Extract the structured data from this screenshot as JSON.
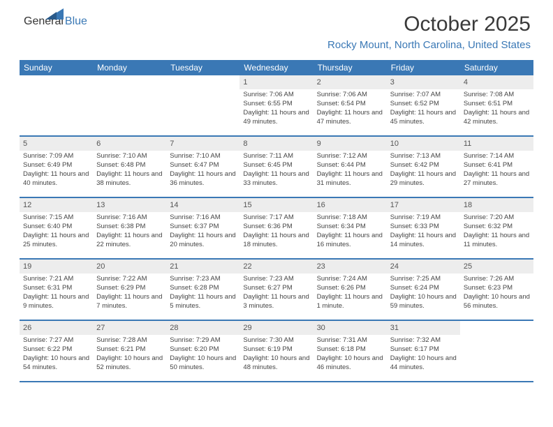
{
  "logo": {
    "part1": "General",
    "part2": "Blue"
  },
  "title": "October 2025",
  "location": "Rocky Mount, North Carolina, United States",
  "colors": {
    "accent": "#3a78b5",
    "header_text": "#ffffff",
    "daynum_bg": "#ededed",
    "logo_gray": "#6f6f6f",
    "body_text": "#444444"
  },
  "days_of_week": [
    "Sunday",
    "Monday",
    "Tuesday",
    "Wednesday",
    "Thursday",
    "Friday",
    "Saturday"
  ],
  "layout": {
    "first_weekday_index": 3,
    "num_days": 31
  },
  "days": {
    "1": {
      "sunrise": "7:06 AM",
      "sunset": "6:55 PM",
      "daylight": "11 hours and 49 minutes."
    },
    "2": {
      "sunrise": "7:06 AM",
      "sunset": "6:54 PM",
      "daylight": "11 hours and 47 minutes."
    },
    "3": {
      "sunrise": "7:07 AM",
      "sunset": "6:52 PM",
      "daylight": "11 hours and 45 minutes."
    },
    "4": {
      "sunrise": "7:08 AM",
      "sunset": "6:51 PM",
      "daylight": "11 hours and 42 minutes."
    },
    "5": {
      "sunrise": "7:09 AM",
      "sunset": "6:49 PM",
      "daylight": "11 hours and 40 minutes."
    },
    "6": {
      "sunrise": "7:10 AM",
      "sunset": "6:48 PM",
      "daylight": "11 hours and 38 minutes."
    },
    "7": {
      "sunrise": "7:10 AM",
      "sunset": "6:47 PM",
      "daylight": "11 hours and 36 minutes."
    },
    "8": {
      "sunrise": "7:11 AM",
      "sunset": "6:45 PM",
      "daylight": "11 hours and 33 minutes."
    },
    "9": {
      "sunrise": "7:12 AM",
      "sunset": "6:44 PM",
      "daylight": "11 hours and 31 minutes."
    },
    "10": {
      "sunrise": "7:13 AM",
      "sunset": "6:42 PM",
      "daylight": "11 hours and 29 minutes."
    },
    "11": {
      "sunrise": "7:14 AM",
      "sunset": "6:41 PM",
      "daylight": "11 hours and 27 minutes."
    },
    "12": {
      "sunrise": "7:15 AM",
      "sunset": "6:40 PM",
      "daylight": "11 hours and 25 minutes."
    },
    "13": {
      "sunrise": "7:16 AM",
      "sunset": "6:38 PM",
      "daylight": "11 hours and 22 minutes."
    },
    "14": {
      "sunrise": "7:16 AM",
      "sunset": "6:37 PM",
      "daylight": "11 hours and 20 minutes."
    },
    "15": {
      "sunrise": "7:17 AM",
      "sunset": "6:36 PM",
      "daylight": "11 hours and 18 minutes."
    },
    "16": {
      "sunrise": "7:18 AM",
      "sunset": "6:34 PM",
      "daylight": "11 hours and 16 minutes."
    },
    "17": {
      "sunrise": "7:19 AM",
      "sunset": "6:33 PM",
      "daylight": "11 hours and 14 minutes."
    },
    "18": {
      "sunrise": "7:20 AM",
      "sunset": "6:32 PM",
      "daylight": "11 hours and 11 minutes."
    },
    "19": {
      "sunrise": "7:21 AM",
      "sunset": "6:31 PM",
      "daylight": "11 hours and 9 minutes."
    },
    "20": {
      "sunrise": "7:22 AM",
      "sunset": "6:29 PM",
      "daylight": "11 hours and 7 minutes."
    },
    "21": {
      "sunrise": "7:23 AM",
      "sunset": "6:28 PM",
      "daylight": "11 hours and 5 minutes."
    },
    "22": {
      "sunrise": "7:23 AM",
      "sunset": "6:27 PM",
      "daylight": "11 hours and 3 minutes."
    },
    "23": {
      "sunrise": "7:24 AM",
      "sunset": "6:26 PM",
      "daylight": "11 hours and 1 minute."
    },
    "24": {
      "sunrise": "7:25 AM",
      "sunset": "6:24 PM",
      "daylight": "10 hours and 59 minutes."
    },
    "25": {
      "sunrise": "7:26 AM",
      "sunset": "6:23 PM",
      "daylight": "10 hours and 56 minutes."
    },
    "26": {
      "sunrise": "7:27 AM",
      "sunset": "6:22 PM",
      "daylight": "10 hours and 54 minutes."
    },
    "27": {
      "sunrise": "7:28 AM",
      "sunset": "6:21 PM",
      "daylight": "10 hours and 52 minutes."
    },
    "28": {
      "sunrise": "7:29 AM",
      "sunset": "6:20 PM",
      "daylight": "10 hours and 50 minutes."
    },
    "29": {
      "sunrise": "7:30 AM",
      "sunset": "6:19 PM",
      "daylight": "10 hours and 48 minutes."
    },
    "30": {
      "sunrise": "7:31 AM",
      "sunset": "6:18 PM",
      "daylight": "10 hours and 46 minutes."
    },
    "31": {
      "sunrise": "7:32 AM",
      "sunset": "6:17 PM",
      "daylight": "10 hours and 44 minutes."
    }
  },
  "labels": {
    "sunrise_prefix": "Sunrise: ",
    "sunset_prefix": "Sunset: ",
    "daylight_prefix": "Daylight: "
  }
}
